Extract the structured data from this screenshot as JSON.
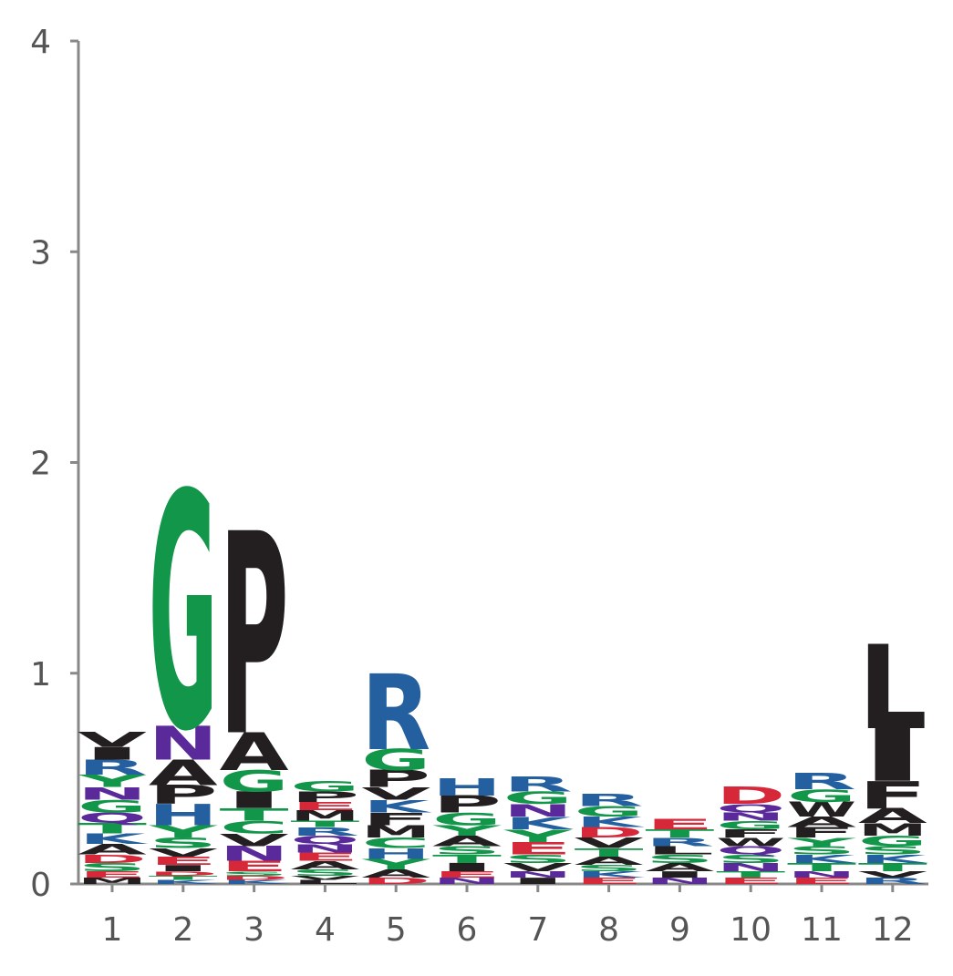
{
  "chart_data": {
    "type": "sequence-logo",
    "title": "",
    "xlabel": "",
    "ylabel": "",
    "ylim": [
      0,
      4
    ],
    "yticks": [
      0,
      1,
      2,
      3,
      4
    ],
    "grid": false,
    "colors": {
      "green": "#12964a",
      "black": "#231f20",
      "blue": "#245fa0",
      "purple": "#5b2a9a",
      "red": "#d7283a",
      "axis": "#888888",
      "tick_text": "#555555"
    },
    "positions": [
      {
        "x": "1",
        "stack": [
          {
            "l": "M",
            "h": 0.03
          },
          {
            "l": "E",
            "h": 0.03
          },
          {
            "l": "S",
            "h": 0.04
          },
          {
            "l": "D",
            "h": 0.04
          },
          {
            "l": "A",
            "h": 0.05
          },
          {
            "l": "K",
            "h": 0.05
          },
          {
            "l": "T",
            "h": 0.05
          },
          {
            "l": "Q",
            "h": 0.05
          },
          {
            "l": "G",
            "h": 0.06
          },
          {
            "l": "N",
            "h": 0.06
          },
          {
            "l": "Y",
            "h": 0.06
          },
          {
            "l": "R",
            "h": 0.07
          },
          {
            "l": "I",
            "h": 0.06
          },
          {
            "l": "V",
            "h": 0.07
          }
        ]
      },
      {
        "x": "2",
        "stack": [
          {
            "l": "K",
            "h": 0.02
          },
          {
            "l": "T",
            "h": 0.02
          },
          {
            "l": "D",
            "h": 0.02
          },
          {
            "l": "I",
            "h": 0.03
          },
          {
            "l": "E",
            "h": 0.04
          },
          {
            "l": "V",
            "h": 0.04
          },
          {
            "l": "S",
            "h": 0.05
          },
          {
            "l": "Y",
            "h": 0.06
          },
          {
            "l": "H",
            "h": 0.1
          },
          {
            "l": "P",
            "h": 0.09
          },
          {
            "l": "A",
            "h": 0.12
          },
          {
            "l": "N",
            "h": 0.16
          },
          {
            "l": "G",
            "h": 1.12
          }
        ]
      },
      {
        "x": "3",
        "stack": [
          {
            "l": "K",
            "h": 0.02
          },
          {
            "l": "D",
            "h": 0.02
          },
          {
            "l": "S",
            "h": 0.02
          },
          {
            "l": "E",
            "h": 0.05
          },
          {
            "l": "N",
            "h": 0.07
          },
          {
            "l": "V",
            "h": 0.06
          },
          {
            "l": "C",
            "h": 0.06
          },
          {
            "l": "T",
            "h": 0.06
          },
          {
            "l": "I",
            "h": 0.08
          },
          {
            "l": "G",
            "h": 0.1
          },
          {
            "l": "A",
            "h": 0.18
          },
          {
            "l": "P",
            "h": 0.96
          }
        ]
      },
      {
        "x": "4",
        "stack": [
          {
            "l": "L",
            "h": 0.02
          },
          {
            "l": "V",
            "h": 0.02
          },
          {
            "l": "S",
            "h": 0.03
          },
          {
            "l": "A",
            "h": 0.04
          },
          {
            "l": "E",
            "h": 0.04
          },
          {
            "l": "N",
            "h": 0.04
          },
          {
            "l": "Q",
            "h": 0.04
          },
          {
            "l": "R",
            "h": 0.04
          },
          {
            "l": "T",
            "h": 0.03
          },
          {
            "l": "M",
            "h": 0.05
          },
          {
            "l": "E",
            "h": 0.04
          },
          {
            "l": "P",
            "h": 0.05
          },
          {
            "l": "G",
            "h": 0.05
          }
        ]
      },
      {
        "x": "5",
        "stack": [
          {
            "l": "D",
            "h": 0.03
          },
          {
            "l": "A",
            "h": 0.04
          },
          {
            "l": "Y",
            "h": 0.05
          },
          {
            "l": "H",
            "h": 0.05
          },
          {
            "l": "C",
            "h": 0.05
          },
          {
            "l": "M",
            "h": 0.06
          },
          {
            "l": "F",
            "h": 0.06
          },
          {
            "l": "K",
            "h": 0.06
          },
          {
            "l": "V",
            "h": 0.06
          },
          {
            "l": "P",
            "h": 0.08
          },
          {
            "l": "G",
            "h": 0.1
          },
          {
            "l": "R",
            "h": 0.36
          }
        ]
      },
      {
        "x": "6",
        "stack": [
          {
            "l": "N",
            "h": 0.03
          },
          {
            "l": "E",
            "h": 0.03
          },
          {
            "l": "I",
            "h": 0.04
          },
          {
            "l": "T",
            "h": 0.04
          },
          {
            "l": "S",
            "h": 0.04
          },
          {
            "l": "A",
            "h": 0.05
          },
          {
            "l": "Y",
            "h": 0.05
          },
          {
            "l": "G",
            "h": 0.06
          },
          {
            "l": "P",
            "h": 0.08
          },
          {
            "l": "H",
            "h": 0.08
          }
        ]
      },
      {
        "x": "7",
        "stack": [
          {
            "l": "I",
            "h": 0.03
          },
          {
            "l": "N",
            "h": 0.03
          },
          {
            "l": "V",
            "h": 0.04
          },
          {
            "l": "S",
            "h": 0.04
          },
          {
            "l": "E",
            "h": 0.06
          },
          {
            "l": "Y",
            "h": 0.06
          },
          {
            "l": "K",
            "h": 0.06
          },
          {
            "l": "N",
            "h": 0.06
          },
          {
            "l": "G",
            "h": 0.06
          },
          {
            "l": "R",
            "h": 0.07
          }
        ]
      },
      {
        "x": "8",
        "stack": [
          {
            "l": "E",
            "h": 0.03
          },
          {
            "l": "K",
            "h": 0.03
          },
          {
            "l": "S",
            "h": 0.03
          },
          {
            "l": "A",
            "h": 0.04
          },
          {
            "l": "T",
            "h": 0.04
          },
          {
            "l": "V",
            "h": 0.05
          },
          {
            "l": "D",
            "h": 0.05
          },
          {
            "l": "K",
            "h": 0.05
          },
          {
            "l": "G",
            "h": 0.05
          },
          {
            "l": "R",
            "h": 0.06
          }
        ]
      },
      {
        "x": "9",
        "stack": [
          {
            "l": "N",
            "h": 0.03
          },
          {
            "l": "I",
            "h": 0.03
          },
          {
            "l": "A",
            "h": 0.04
          },
          {
            "l": "S",
            "h": 0.04
          },
          {
            "l": "L",
            "h": 0.04
          },
          {
            "l": "R",
            "h": 0.04
          },
          {
            "l": "T",
            "h": 0.04
          },
          {
            "l": "E",
            "h": 0.05
          }
        ]
      },
      {
        "x": "10",
        "stack": [
          {
            "l": "E",
            "h": 0.03
          },
          {
            "l": "T",
            "h": 0.03
          },
          {
            "l": "N",
            "h": 0.04
          },
          {
            "l": "S",
            "h": 0.04
          },
          {
            "l": "Q",
            "h": 0.04
          },
          {
            "l": "W",
            "h": 0.04
          },
          {
            "l": "F",
            "h": 0.04
          },
          {
            "l": "G",
            "h": 0.04
          },
          {
            "l": "N",
            "h": 0.04
          },
          {
            "l": "Q",
            "h": 0.04
          },
          {
            "l": "D",
            "h": 0.08
          }
        ]
      },
      {
        "x": "11",
        "stack": [
          {
            "l": "E",
            "h": 0.03
          },
          {
            "l": "N",
            "h": 0.03
          },
          {
            "l": "T",
            "h": 0.04
          },
          {
            "l": "K",
            "h": 0.04
          },
          {
            "l": "S",
            "h": 0.04
          },
          {
            "l": "Y",
            "h": 0.04
          },
          {
            "l": "F",
            "h": 0.05
          },
          {
            "l": "A",
            "h": 0.05
          },
          {
            "l": "W",
            "h": 0.07
          },
          {
            "l": "G",
            "h": 0.06
          },
          {
            "l": "R",
            "h": 0.08
          }
        ]
      },
      {
        "x": "12",
        "stack": [
          {
            "l": "R",
            "h": 0.03
          },
          {
            "l": "V",
            "h": 0.03
          },
          {
            "l": "T",
            "h": 0.04
          },
          {
            "l": "K",
            "h": 0.04
          },
          {
            "l": "S",
            "h": 0.04
          },
          {
            "l": "G",
            "h": 0.05
          },
          {
            "l": "M",
            "h": 0.06
          },
          {
            "l": "A",
            "h": 0.07
          },
          {
            "l": "F",
            "h": 0.13
          },
          {
            "l": "I",
            "h": 0.25
          },
          {
            "l": "L",
            "h": 0.4
          }
        ]
      }
    ]
  }
}
